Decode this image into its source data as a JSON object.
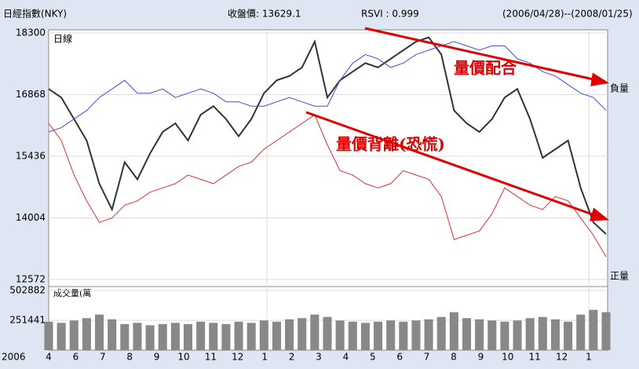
{
  "chart_data": {
    "type": "stock",
    "header": {
      "name": "日經指數(NKY)",
      "close": "收盤價: 13629.1",
      "rsvi": "RSVI : 0.999",
      "range": "(2006/04/28)--(2008/01/25)"
    },
    "panel_label": "日線",
    "volume_label": "成交量(萬",
    "annotations": [
      "量價配合",
      "量價背離(恐慌)"
    ],
    "side_labels": [
      "負量",
      "正量"
    ],
    "year_label": "2006",
    "x_labels": [
      "4",
      "6",
      "7",
      "8",
      "9",
      "10",
      "11",
      "12",
      "1",
      "2",
      "3",
      "4",
      "5",
      "6",
      "7",
      "8",
      "9",
      "10",
      "11",
      "12",
      "1"
    ],
    "ylim": [
      12572,
      18300
    ],
    "yticks": [
      18300,
      16868,
      15436,
      14004,
      12572
    ],
    "vol_ylim": [
      0,
      502882
    ],
    "vol_yticks": [
      502882,
      251441
    ],
    "series": [
      {
        "name": "price",
        "color": "#333333",
        "values": [
          17000,
          16800,
          16300,
          15800,
          14800,
          14200,
          15300,
          14900,
          15500,
          16000,
          16200,
          15800,
          16400,
          16600,
          16300,
          15900,
          16300,
          16900,
          17200,
          17300,
          17500,
          18100,
          16800,
          17200,
          17400,
          17600,
          17500,
          17700,
          17900,
          18100,
          18200,
          17800,
          16500,
          16200,
          16000,
          16300,
          16800,
          17000,
          16300,
          15400,
          15600,
          15800,
          14700,
          13900,
          13629
        ]
      },
      {
        "name": "negative",
        "color": "#4a4ad8",
        "values": [
          16000,
          16100,
          16300,
          16500,
          16800,
          17000,
          17200,
          16900,
          16900,
          17000,
          16800,
          16900,
          17000,
          16900,
          16700,
          16700,
          16600,
          16600,
          16700,
          16800,
          16700,
          16600,
          16600,
          17200,
          17600,
          17800,
          17700,
          17500,
          17600,
          17800,
          17900,
          18000,
          18100,
          18000,
          17900,
          18000,
          18000,
          17700,
          17600,
          17400,
          17300,
          17100,
          16900,
          16800,
          16500
        ]
      },
      {
        "name": "positive",
        "color": "#e03030",
        "values": [
          16200,
          15800,
          15000,
          14400,
          13900,
          14000,
          14300,
          14400,
          14600,
          14700,
          14800,
          15000,
          14900,
          14800,
          15000,
          15200,
          15300,
          15600,
          15800,
          16000,
          16200,
          16400,
          15700,
          15100,
          15000,
          14800,
          14700,
          14800,
          15100,
          15000,
          14900,
          14500,
          13500,
          13600,
          13700,
          14100,
          14700,
          14500,
          14300,
          14200,
          14500,
          14400,
          14000,
          13600,
          13100
        ]
      }
    ],
    "volume": [
      240000,
      230000,
      250000,
      270000,
      300000,
      260000,
      220000,
      230000,
      210000,
      220000,
      230000,
      220000,
      240000,
      230000,
      220000,
      240000,
      230000,
      250000,
      240000,
      260000,
      270000,
      300000,
      280000,
      250000,
      240000,
      230000,
      240000,
      250000,
      240000,
      250000,
      260000,
      280000,
      320000,
      270000,
      260000,
      250000,
      240000,
      250000,
      270000,
      280000,
      260000,
      240000,
      300000,
      340000,
      320000
    ]
  }
}
